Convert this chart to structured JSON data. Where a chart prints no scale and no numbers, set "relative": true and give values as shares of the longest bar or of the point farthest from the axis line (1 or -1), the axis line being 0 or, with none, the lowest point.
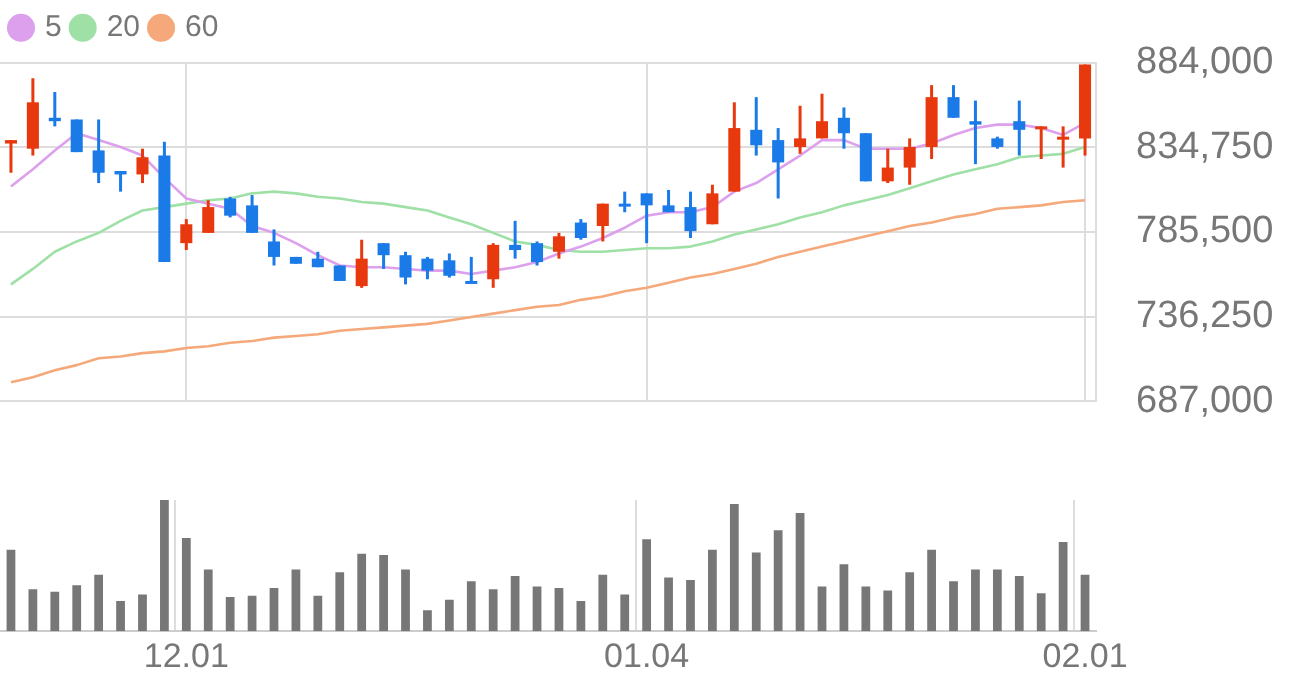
{
  "chart_data": [
    {
      "type": "candlestick",
      "categories": [
        null,
        null,
        null,
        null,
        null,
        null,
        null,
        null,
        "12.01",
        null,
        null,
        null,
        null,
        null,
        null,
        null,
        null,
        null,
        null,
        null,
        null,
        null,
        null,
        null,
        null,
        null,
        null,
        null,
        null,
        "01.04",
        null,
        null,
        null,
        null,
        null,
        null,
        null,
        null,
        null,
        null,
        null,
        null,
        null,
        null,
        null,
        null,
        null,
        null,
        null,
        "02.01"
      ],
      "ohlc": [
        [
          837000,
          839000,
          820000,
          839000
        ],
        [
          834000,
          875000,
          830000,
          861000
        ],
        [
          852000,
          867000,
          847000,
          850000
        ],
        [
          851000,
          851000,
          832000,
          832000
        ],
        [
          833000,
          851000,
          814000,
          820000
        ],
        [
          821000,
          821000,
          809000,
          819000
        ],
        [
          819000,
          834000,
          814000,
          829000
        ],
        [
          830000,
          838000,
          768000,
          768000
        ],
        [
          779000,
          793000,
          775000,
          790000
        ],
        [
          785000,
          804000,
          785000,
          800000
        ],
        [
          805000,
          806000,
          794000,
          795000
        ],
        [
          801000,
          807000,
          785000,
          785000
        ],
        [
          780000,
          787000,
          766000,
          771000
        ],
        [
          771000,
          771000,
          767000,
          767000
        ],
        [
          770000,
          774000,
          765000,
          765000
        ],
        [
          766000,
          766000,
          757000,
          757000
        ],
        [
          754000,
          781000,
          753000,
          770000
        ],
        [
          779000,
          779000,
          764000,
          772000
        ],
        [
          772000,
          774000,
          755000,
          759000
        ],
        [
          770000,
          771000,
          758000,
          763000
        ],
        [
          769000,
          773000,
          759000,
          760000
        ],
        [
          757000,
          771000,
          756000,
          756000
        ],
        [
          758000,
          779000,
          753000,
          778000
        ],
        [
          778000,
          792000,
          770000,
          775000
        ],
        [
          779000,
          780000,
          766000,
          768000
        ],
        [
          774000,
          785000,
          770000,
          783000
        ],
        [
          791000,
          793000,
          781000,
          782000
        ],
        [
          789000,
          802000,
          780000,
          802000
        ],
        [
          802000,
          809000,
          797000,
          801000
        ],
        [
          808000,
          808000,
          779000,
          801000
        ],
        [
          801000,
          810000,
          797000,
          797000
        ],
        [
          800000,
          809000,
          782000,
          786000
        ],
        [
          790000,
          813000,
          790000,
          808000
        ],
        [
          809000,
          861000,
          809000,
          846000
        ],
        [
          845000,
          864000,
          830000,
          836000
        ],
        [
          839000,
          846000,
          805000,
          826000
        ],
        [
          835000,
          859000,
          831000,
          840000
        ],
        [
          840000,
          866000,
          840000,
          850000
        ],
        [
          852000,
          858000,
          834000,
          843000
        ],
        [
          843000,
          843000,
          815000,
          815000
        ],
        [
          815000,
          834000,
          814000,
          823000
        ],
        [
          823000,
          840000,
          813000,
          835000
        ],
        [
          835000,
          871000,
          828000,
          864000
        ],
        [
          864000,
          871000,
          852000,
          852000
        ],
        [
          850000,
          862000,
          825000,
          848000
        ],
        [
          840000,
          841000,
          834000,
          835000
        ],
        [
          850000,
          862000,
          830000,
          845000
        ],
        [
          846000,
          847000,
          828000,
          847000
        ],
        [
          840000,
          847000,
          823000,
          841000
        ],
        [
          840000,
          883000,
          830000,
          883000
        ]
      ],
      "colors": [
        "#e8380d",
        "#e8380d",
        "#1a7ae8",
        "#1a7ae8",
        "#1a7ae8",
        "#1a7ae8",
        "#e8380d",
        "#1a7ae8",
        "#e8380d",
        "#e8380d",
        "#1a7ae8",
        "#1a7ae8",
        "#1a7ae8",
        "#1a7ae8",
        "#1a7ae8",
        "#1a7ae8",
        "#e8380d",
        "#1a7ae8",
        "#1a7ae8",
        "#1a7ae8",
        "#1a7ae8",
        "#1a7ae8",
        "#e8380d",
        "#1a7ae8",
        "#1a7ae8",
        "#e8380d",
        "#1a7ae8",
        "#e8380d",
        "#1a7ae8",
        "#1a7ae8",
        "#1a7ae8",
        "#1a7ae8",
        "#e8380d",
        "#e8380d",
        "#1a7ae8",
        "#1a7ae8",
        "#e8380d",
        "#e8380d",
        "#1a7ae8",
        "#1a7ae8",
        "#e8380d",
        "#e8380d",
        "#e8380d",
        "#1a7ae8",
        "#1a7ae8",
        "#1a7ae8",
        "#1a7ae8",
        "#e8380d",
        "#e8380d",
        "#e8380d"
      ],
      "series": [
        {
          "name": "5",
          "type": "line",
          "color": "#dca0ec",
          "values": [
            812000,
            822000,
            833000,
            843000,
            839000,
            835000,
            830000,
            817000,
            805000,
            802000,
            799000,
            789000,
            785000,
            779000,
            772000,
            766000,
            765000,
            765000,
            764000,
            763000,
            763000,
            761000,
            763000,
            765000,
            768000,
            773000,
            777000,
            782000,
            788000,
            795000,
            797000,
            797000,
            800000,
            809000,
            814000,
            822000,
            830000,
            839000,
            839000,
            834000,
            834000,
            834000,
            837000,
            842000,
            846000,
            848000,
            848000,
            846000,
            842000,
            849000
          ]
        },
        {
          "name": "20",
          "type": "line",
          "color": "#9ee0a6",
          "values": [
            755000,
            764000,
            774000,
            780000,
            785000,
            792000,
            798000,
            800000,
            802000,
            804000,
            805000,
            808000,
            809000,
            808000,
            806000,
            805000,
            803000,
            802000,
            800000,
            798000,
            794000,
            790000,
            785000,
            780000,
            778000,
            775000,
            774000,
            774000,
            775000,
            776000,
            776000,
            777000,
            780000,
            784000,
            787000,
            790000,
            794000,
            797000,
            801000,
            804000,
            807000,
            811000,
            815000,
            819000,
            822000,
            825000,
            829000,
            830000,
            831000,
            835000
          ]
        },
        {
          "name": "60",
          "type": "line",
          "color": "#f5a87a",
          "values": [
            698000,
            701000,
            705000,
            708000,
            712000,
            713000,
            715000,
            716000,
            718000,
            719000,
            721000,
            722000,
            724000,
            725000,
            726000,
            728000,
            729000,
            730000,
            731000,
            732000,
            734000,
            736000,
            738000,
            740000,
            742000,
            743000,
            746000,
            748000,
            751000,
            753000,
            756000,
            759000,
            761000,
            764000,
            767000,
            771000,
            774000,
            777000,
            780000,
            783000,
            786000,
            789000,
            791000,
            794000,
            796000,
            799000,
            800000,
            801000,
            803000,
            804000
          ]
        }
      ],
      "ylim": [
        687000,
        884000
      ],
      "yticks": [
        {
          "value": 687000,
          "label": "687,000"
        },
        {
          "value": 736250,
          "label": "736,250"
        },
        {
          "value": 785500,
          "label": "785,500"
        },
        {
          "value": 834750,
          "label": "834,750"
        },
        {
          "value": 884000,
          "label": "884,000"
        }
      ],
      "grid": true,
      "legend": "top left",
      "marker": "none",
      "tick_labels": "y"
    },
    {
      "type": "bar",
      "categories": [
        null,
        null,
        null,
        null,
        null,
        null,
        null,
        null,
        "12.01",
        null,
        null,
        null,
        null,
        null,
        null,
        null,
        null,
        null,
        null,
        null,
        null,
        null,
        null,
        null,
        null,
        null,
        null,
        null,
        null,
        "01.04",
        null,
        null,
        null,
        null,
        null,
        null,
        null,
        null,
        null,
        null,
        null,
        null,
        null,
        null,
        null,
        null,
        null,
        null,
        null,
        "02.01"
      ],
      "values": [
        0.62,
        0.32,
        0.3,
        0.35,
        0.43,
        0.23,
        0.28,
        1,
        0.71,
        0.47,
        0.26,
        0.27,
        0.33,
        0.47,
        0.27,
        0.45,
        0.59,
        0.58,
        0.47,
        0.16,
        0.24,
        0.38,
        0.32,
        0.42,
        0.34,
        0.33,
        0.23,
        0.43,
        0.28,
        0.7,
        0.41,
        0.39,
        0.62,
        0.97,
        0.6,
        0.77,
        0.9,
        0.34,
        0.51,
        0.34,
        0.31,
        0.45,
        0.62,
        0.38,
        0.47,
        0.47,
        0.42,
        0.29,
        0.68,
        0.43
      ],
      "color": "#777777",
      "relative": true,
      "grid": "x",
      "tick_labels": "x"
    }
  ]
}
